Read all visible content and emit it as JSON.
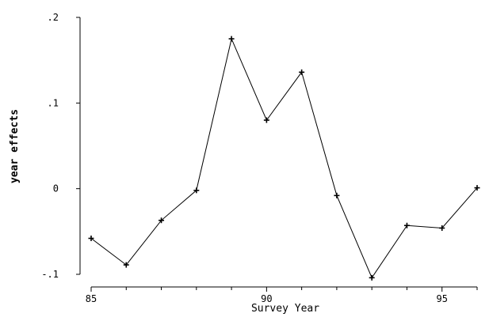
{
  "chart_data": {
    "type": "line",
    "xlabel": "Survey Year",
    "ylabel": "year effects",
    "xlim": [
      85,
      96
    ],
    "ylim": [
      -0.1,
      0.2
    ],
    "x_ticks": [
      85,
      86,
      87,
      88,
      89,
      90,
      91,
      92,
      93,
      94,
      95,
      96
    ],
    "x_tick_labels": [
      {
        "value": 85,
        "label": "85"
      },
      {
        "value": 90,
        "label": "90"
      },
      {
        "value": 95,
        "label": "95"
      }
    ],
    "y_ticks": [
      {
        "value": 0.2,
        "label": ".2"
      },
      {
        "value": 0.1,
        "label": ".1"
      },
      {
        "value": 0,
        "label": "0"
      },
      {
        "value": -0.1,
        "label": "-.1"
      }
    ],
    "grid": false,
    "series": [
      {
        "color": "#000000",
        "marker": "plus",
        "x": [
          85,
          86,
          87,
          88,
          89,
          90,
          91,
          92,
          93,
          94,
          95,
          96
        ],
        "y": [
          -0.058,
          -0.089,
          -0.037,
          -0.002,
          0.175,
          0.08,
          0.136,
          -0.008,
          -0.104,
          -0.043,
          -0.046,
          0.001
        ]
      }
    ]
  }
}
